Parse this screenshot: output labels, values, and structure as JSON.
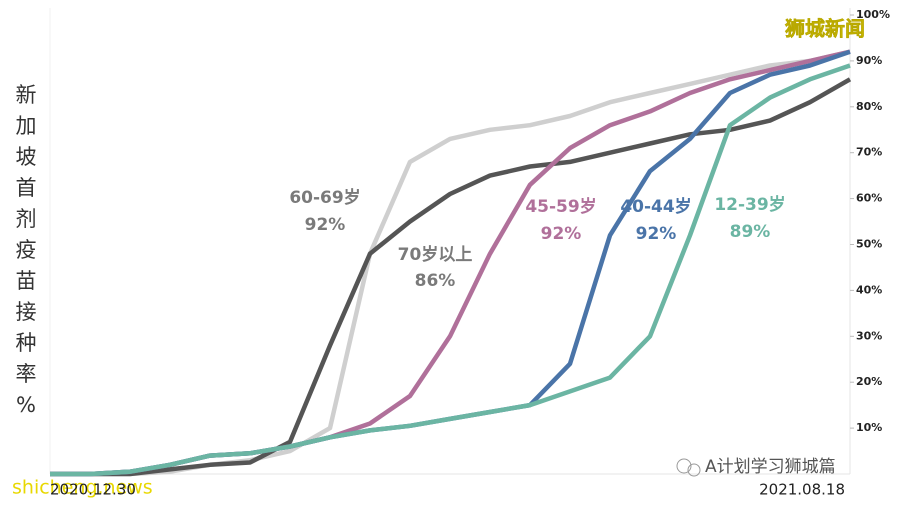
{
  "chart_data": {
    "type": "line",
    "y_label": "新加坡首剂疫苗接种率%",
    "watermarks": [
      "狮城新闻",
      "shicheng.news",
      "A计划学习狮城篇"
    ],
    "categories": [
      "2020.12.30",
      null,
      null,
      null,
      null,
      null,
      null,
      null,
      null,
      null,
      null,
      null,
      null,
      null,
      null,
      null,
      null,
      null,
      null,
      null,
      "2021.08.18"
    ],
    "ylim": [
      0,
      100
    ],
    "yticks": [
      {
        "value": 10,
        "label": "10%"
      },
      {
        "value": 20,
        "label": "20%"
      },
      {
        "value": 30,
        "label": "30%"
      },
      {
        "value": 40,
        "label": "40%"
      },
      {
        "value": 50,
        "label": "50%"
      },
      {
        "value": 60,
        "label": "60%"
      },
      {
        "value": 70,
        "label": "70%"
      },
      {
        "value": 80,
        "label": "80%"
      },
      {
        "value": 90,
        "label": "90%"
      },
      {
        "value": 100,
        "label": "100%"
      }
    ],
    "grid": false,
    "series": [
      {
        "name": "70岁以上",
        "end_label": "86%",
        "color": "#555555",
        "label_color": "#7a7a7a",
        "values": [
          0,
          0,
          0,
          1,
          2,
          2.5,
          7,
          28,
          48,
          55,
          61,
          65,
          67,
          68,
          70,
          72,
          74,
          75,
          77,
          81,
          86
        ]
      },
      {
        "name": "60-69岁",
        "end_label": "92%",
        "color": "#cfcfcf",
        "label_color": "#7a7a7a",
        "values": [
          0,
          0,
          0,
          0.5,
          2,
          3,
          5,
          10,
          48,
          68,
          73,
          75,
          76,
          78,
          81,
          83,
          85,
          87,
          89,
          90,
          92
        ]
      },
      {
        "name": "45-59岁",
        "end_label": "92%",
        "color": "#b0709a",
        "label_color": "#b0709a",
        "values": [
          0,
          0,
          0.5,
          2,
          4,
          4.5,
          6,
          8,
          11,
          17,
          30,
          48,
          63,
          71,
          76,
          79,
          83,
          86,
          88,
          90,
          92
        ]
      },
      {
        "name": "40-44岁",
        "end_label": "92%",
        "color": "#4a74a8",
        "label_color": "#4a74a8",
        "values": [
          0,
          0,
          0.5,
          2,
          4,
          4.5,
          6,
          8,
          9.5,
          10.5,
          12,
          13.5,
          15,
          24,
          52,
          66,
          73,
          83,
          87,
          89,
          92
        ]
      },
      {
        "name": "12-39岁",
        "end_label": "89%",
        "color": "#6bb5a3",
        "label_color": "#6bb5a3",
        "values": [
          0,
          0,
          0.5,
          2,
          4,
          4.5,
          6,
          8,
          9.5,
          10.5,
          12,
          13.5,
          15,
          18,
          21,
          30,
          52,
          76,
          82,
          86,
          89
        ]
      }
    ]
  }
}
